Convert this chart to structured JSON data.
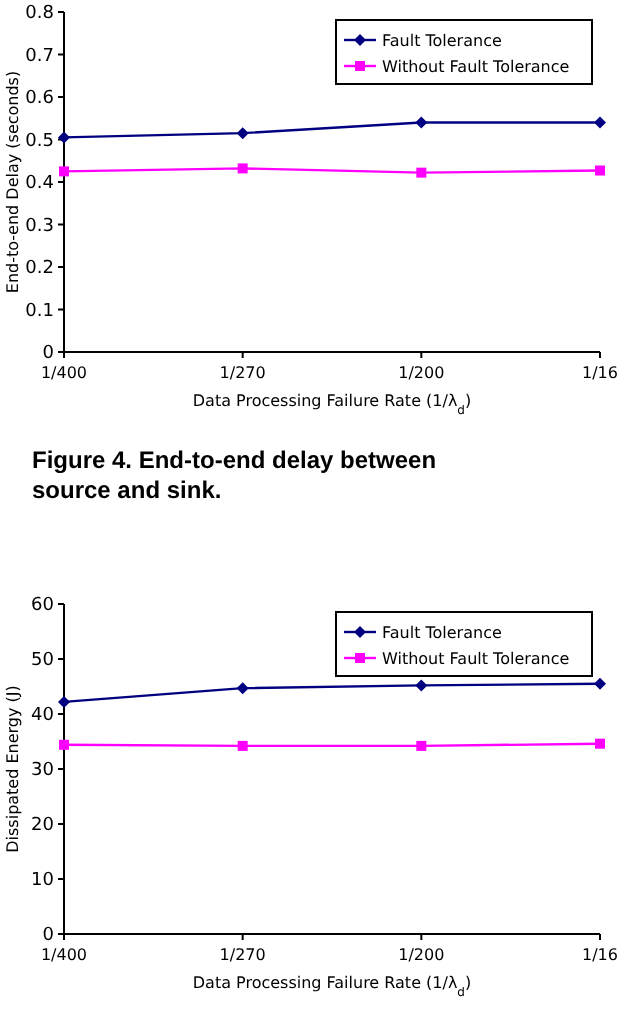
{
  "chart_data": [
    {
      "type": "line",
      "xlabel": "Data Processing Failure Rate (1/λ$_{d}$)",
      "ylabel": "End-to-end Delay (seconds)",
      "categories": [
        "1/400",
        "1/270",
        "1/200",
        "1/16"
      ],
      "ylim": [
        0,
        0.8
      ],
      "yticks": [
        0,
        0.1,
        0.2,
        0.3,
        0.4,
        0.5,
        0.6,
        0.7,
        0.8
      ],
      "legend": "top right",
      "grid": false,
      "annotations": [
        "Figure 4. End-to-end delay between source and sink."
      ],
      "series": [
        {
          "name": "Fault Tolerance",
          "color": "#000080",
          "marker": "diamond",
          "values": [
            0.505,
            0.515,
            0.54,
            0.54
          ]
        },
        {
          "name": "Without Fault Tolerance",
          "color": "#ff00ff",
          "marker": "square",
          "values": [
            0.425,
            0.432,
            0.422,
            0.427
          ]
        }
      ]
    },
    {
      "type": "line",
      "xlabel": "Data Processing Failure Rate (1/λ$_{d}$)",
      "ylabel": "Dissipated Energy (J)",
      "categories": [
        "1/400",
        "1/270",
        "1/200",
        "1/16"
      ],
      "ylim": [
        0,
        60
      ],
      "yticks": [
        0,
        10,
        20,
        30,
        40,
        50,
        60
      ],
      "legend": "top right",
      "grid": false,
      "series": [
        {
          "name": "Fault Tolerance",
          "color": "#000080",
          "marker": "diamond",
          "values": [
            42.2,
            44.7,
            45.2,
            45.5
          ]
        },
        {
          "name": "Without Fault Tolerance",
          "color": "#ff00ff",
          "marker": "square",
          "values": [
            34.4,
            34.2,
            34.2,
            34.6
          ]
        }
      ]
    }
  ]
}
